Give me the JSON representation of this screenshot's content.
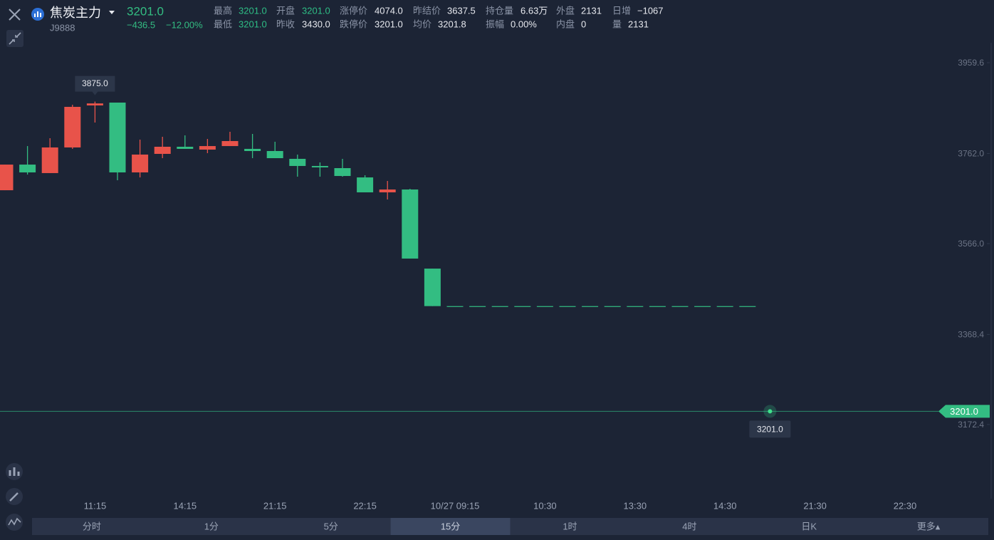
{
  "header": {
    "title": "焦炭主力",
    "code": "J9888",
    "price": "3201.0",
    "change": "−436.5",
    "change_pct": "−12.00%",
    "stats": [
      [
        {
          "label": "最高",
          "value": "3201.0",
          "color": "#2ebd85"
        },
        {
          "label": "开盘",
          "value": "3201.0",
          "color": "#2ebd85"
        },
        {
          "label": "涨停价",
          "value": "4074.0",
          "color": "#e6e8ee"
        },
        {
          "label": "昨结价",
          "value": "3637.5",
          "color": "#e6e8ee"
        },
        {
          "label": "持仓量",
          "value": "6.63万",
          "color": "#e6e8ee"
        },
        {
          "label": "外盘",
          "value": "2131",
          "color": "#e6e8ee"
        },
        {
          "label": "日增",
          "value": "−1067",
          "color": "#e6e8ee"
        }
      ],
      [
        {
          "label": "最低",
          "value": "3201.0",
          "color": "#2ebd85"
        },
        {
          "label": "昨收",
          "value": "3430.0",
          "color": "#e6e8ee"
        },
        {
          "label": "跌停价",
          "value": "3201.0",
          "color": "#e6e8ee"
        },
        {
          "label": "均价",
          "value": "3201.8",
          "color": "#e6e8ee"
        },
        {
          "label": "振幅",
          "value": "0.00%",
          "color": "#e6e8ee"
        },
        {
          "label": "内盘",
          "value": "0",
          "color": "#e6e8ee"
        },
        {
          "label": "量",
          "value": "2131",
          "color": "#e6e8ee"
        }
      ]
    ]
  },
  "chart_data": {
    "type": "candlestick",
    "categories": [
      null,
      null,
      null,
      null,
      "11:15",
      null,
      null,
      null,
      "14:15",
      null,
      null,
      null,
      "21:15",
      null,
      null,
      null,
      "22:15",
      null,
      null,
      null,
      "10/27 09:15",
      null,
      null,
      null,
      "10:30",
      null,
      null,
      null,
      "13:30",
      null,
      null,
      null,
      "14:30",
      null,
      null,
      null,
      "21:30",
      null,
      null,
      null,
      "22:30",
      null
    ],
    "open": [
      3682.1,
      3737.9,
      3719.4,
      3775.2,
      3866.6,
      3872.8,
      3720.9,
      3761.2,
      3776.7,
      3770.5,
      3778.2,
      3772.1,
      3767.4,
      3750.4,
      3734.9,
      3730.2,
      3710.0,
      3677.5,
      3683.7,
      3511.6,
      3430,
      3430,
      3430,
      3430,
      3430,
      3430,
      3430,
      3430,
      3430,
      3430,
      3430,
      3430,
      3430,
      3430,
      null,
      null,
      null,
      null,
      null,
      null,
      null,
      null
    ],
    "high": [
      3737.9,
      3778.2,
      3795.3,
      3868.1,
      3875.0,
      3872.8,
      3792.2,
      3798.4,
      3801.5,
      3793.7,
      3809.3,
      3804.6,
      3787.6,
      3759.7,
      3742.6,
      3750.4,
      3714.7,
      3702.3,
      3685.2,
      3511.6,
      3430,
      3430,
      3430,
      3430,
      3430,
      3430,
      3430,
      3430,
      3430,
      3430,
      3430,
      3430,
      3430,
      3430,
      null,
      null,
      null,
      null,
      null,
      null,
      null,
      null
    ],
    "low": [
      3682.1,
      3716.2,
      3719.4,
      3772.1,
      3829.4,
      3703.8,
      3710.0,
      3751.9,
      3772.1,
      3762.8,
      3778.2,
      3751.9,
      3751.9,
      3711.6,
      3711.6,
      3711.6,
      3677.5,
      3662.0,
      3533.4,
      3430.0,
      3430,
      3430,
      3430,
      3430,
      3430,
      3430,
      3430,
      3430,
      3430,
      3430,
      3430,
      3430,
      3430,
      3430,
      null,
      null,
      null,
      null,
      null,
      null,
      null,
      null
    ],
    "close": [
      3737.9,
      3720.9,
      3775.2,
      3863.5,
      3871.0,
      3720.9,
      3759.7,
      3776.7,
      3772.1,
      3778.2,
      3789.1,
      3767.4,
      3751.9,
      3734.9,
      3731.8,
      3713.1,
      3677.5,
      3683.7,
      3533.4,
      3430.0,
      3430,
      3430,
      3430,
      3430,
      3430,
      3430,
      3430,
      3430,
      3430,
      3430,
      3430,
      3430,
      3430,
      3430,
      null,
      null,
      null,
      null,
      null,
      null,
      null,
      null
    ],
    "up_color": "#e8534a",
    "down_color": "#33bd82",
    "ylim": [
      3011,
      4003
    ],
    "yticks": [
      3172.4,
      3368.4,
      {
        "value": 3566,
        "label": "3566.0"
      },
      {
        "value": 3762,
        "label": "3762.0"
      },
      3959.6
    ],
    "max_label": "3875.0",
    "last_price": {
      "value": 3201,
      "label": "3201.0"
    }
  },
  "toolbar": {
    "tabs": [
      "分时",
      "1分",
      "5分",
      "15分",
      "1时",
      "4时",
      "日K",
      "更多▴"
    ],
    "active": 3
  }
}
